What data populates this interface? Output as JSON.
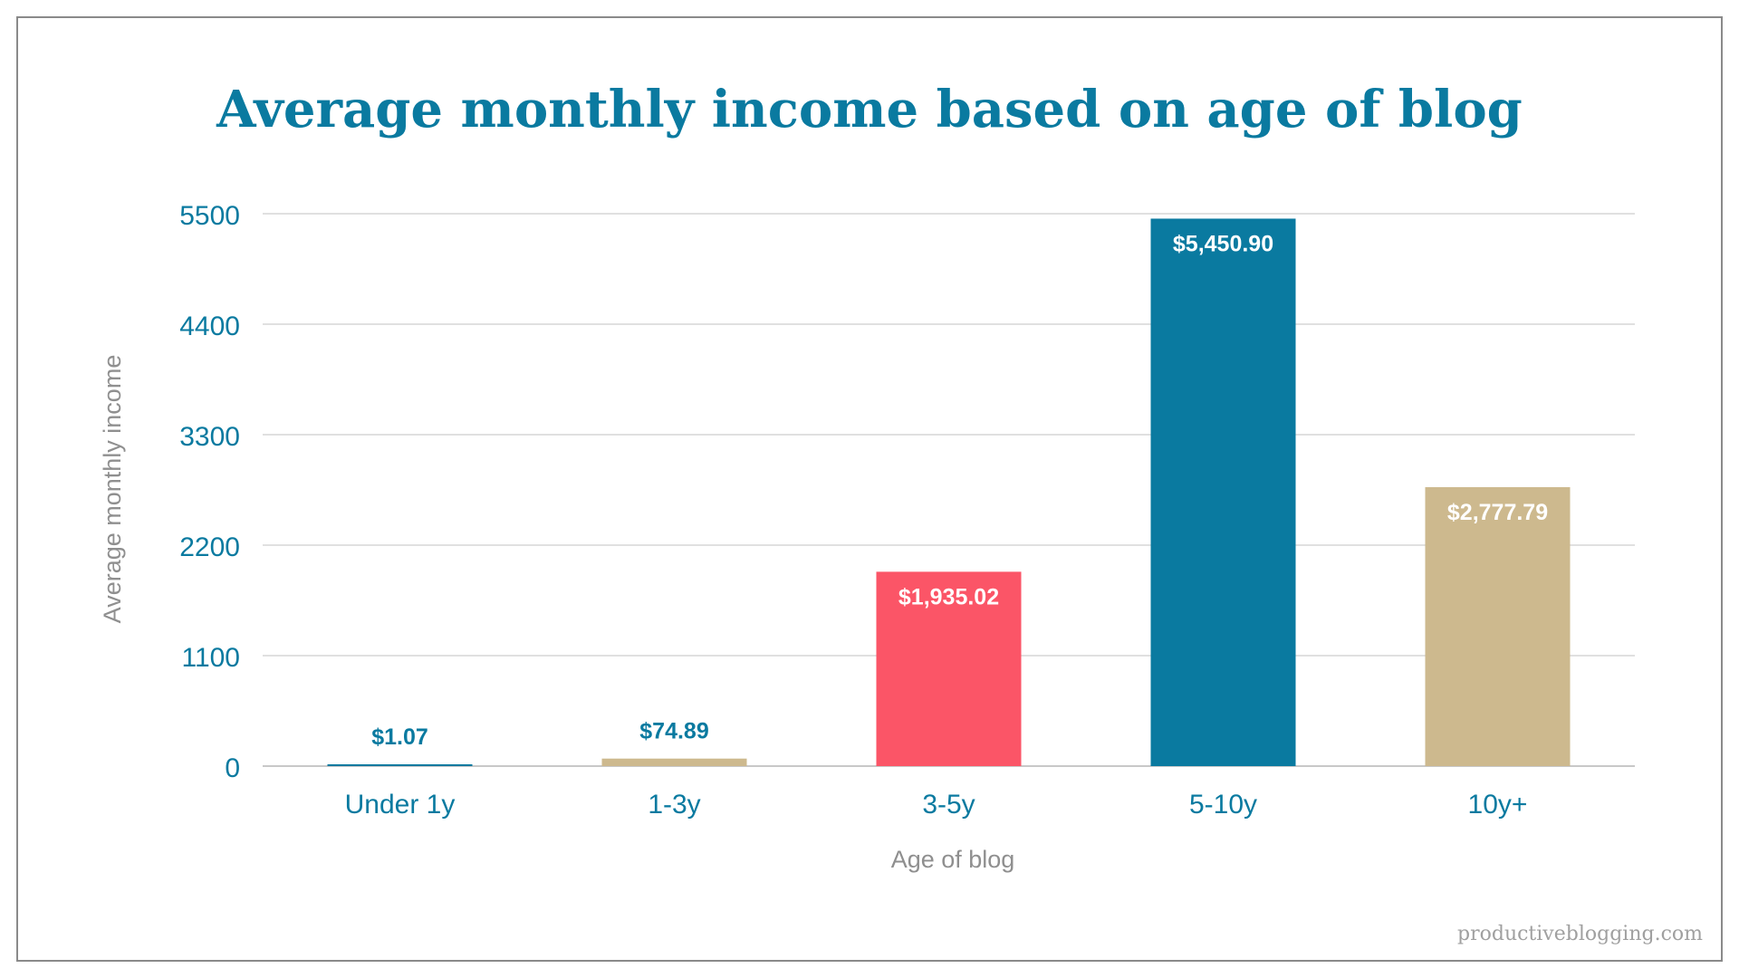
{
  "chart_data": {
    "type": "bar",
    "title": "Average monthly income based on age of blog",
    "xlabel": "Age of blog",
    "ylabel": "Average monthly income",
    "categories": [
      "Under 1y",
      "1-3y",
      "3-5y",
      "5-10y",
      "10y+"
    ],
    "values": [
      1.07,
      74.89,
      1935.02,
      5450.9,
      2777.79
    ],
    "value_labels": [
      "$1.07",
      "$74.89",
      "$1,935.02",
      "$5,450.90",
      "$2,777.79"
    ],
    "bar_colors": [
      "#0a7aa0",
      "#cdb98e",
      "#fb5567",
      "#0a7aa0",
      "#cdb98e"
    ],
    "label_colors": [
      "#0a7aa0",
      "#0a7aa0",
      "#ffffff",
      "#ffffff",
      "#ffffff"
    ],
    "label_inside": [
      false,
      false,
      true,
      true,
      true
    ],
    "yticks": [
      0,
      1100,
      2200,
      3300,
      4400,
      5500
    ],
    "ytick_labels": [
      "0",
      "1100",
      "2200",
      "3300",
      "4400",
      "5500"
    ],
    "ylim": [
      0,
      5500
    ],
    "grid": true,
    "legend": "none"
  },
  "source": "productiveblogging.com",
  "colors": {
    "accent": "#0a7aa0",
    "axis_label": "#8f8f8f"
  }
}
